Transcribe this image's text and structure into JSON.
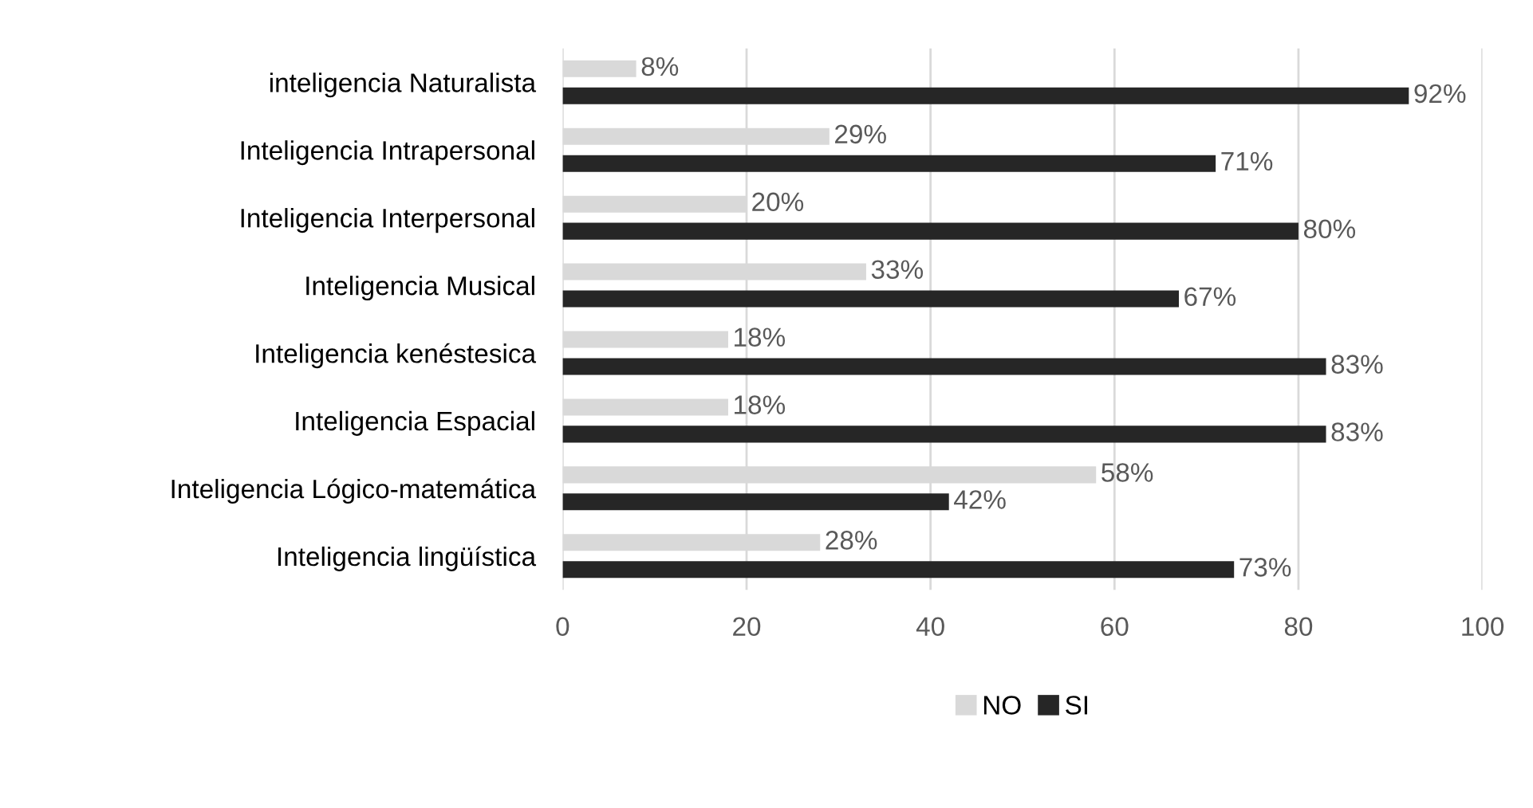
{
  "chart_data": {
    "type": "bar",
    "orientation": "horizontal",
    "categories": [
      "inteligencia Naturalista",
      "Inteligencia Intrapersonal",
      "Inteligencia Interpersonal",
      "Inteligencia Musical",
      "Inteligencia kenéstesica",
      "Inteligencia Espacial",
      "Inteligencia Lógico-matemática",
      "Inteligencia lingüística"
    ],
    "series": [
      {
        "name": "NO",
        "color": "#d9d9d9",
        "values": [
          8,
          29,
          20,
          33,
          18,
          18,
          58,
          28
        ],
        "value_labels": [
          "8%",
          "29%",
          "20%",
          "33%",
          "18%",
          "18%",
          "58%",
          "28%"
        ]
      },
      {
        "name": "SI",
        "color": "#262626",
        "values": [
          92,
          71,
          80,
          67,
          83,
          83,
          42,
          73
        ],
        "value_labels": [
          "92%",
          "71%",
          "80%",
          "67%",
          "83%",
          "83%",
          "42%",
          "73%"
        ]
      }
    ],
    "xlim": [
      0,
      100
    ],
    "xticks": [
      0,
      20,
      40,
      60,
      80,
      100
    ],
    "grid": "x",
    "legend": "bottom"
  }
}
